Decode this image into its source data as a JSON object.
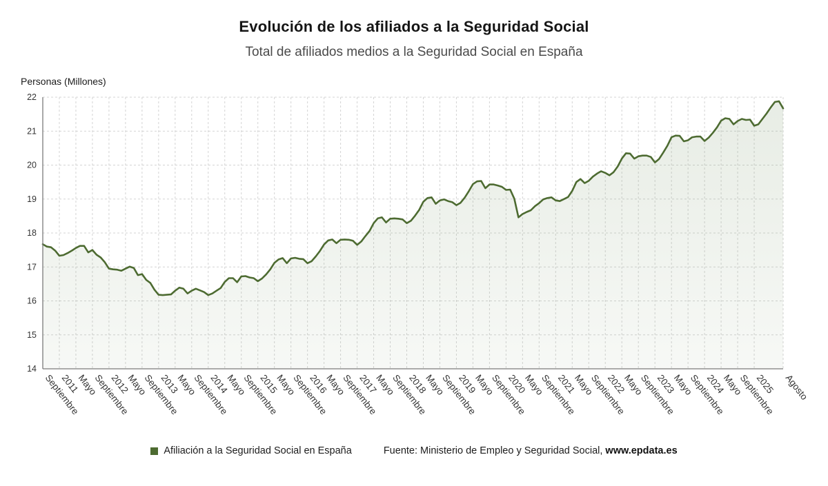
{
  "source": {
    "prefix": "Fuente: Ministerio de Empleo y Seguridad Social, ",
    "site": "www.epdata.es"
  },
  "colors": {
    "line": "#4d6b31",
    "area": "#8aa37c",
    "grid": "#d3d3d3",
    "axis": "#7a7a7a",
    "text": "#333333"
  },
  "chart_data": {
    "type": "area",
    "title": "Evolución de los afiliados a la Seguridad Social",
    "subtitle": "Total de afiliados medios a la Seguridad Social en España",
    "xlabel": "",
    "ylabel": "Personas (Millones)",
    "ylim": [
      14,
      22
    ],
    "y_ticks": [
      14,
      15,
      16,
      17,
      18,
      19,
      20,
      21,
      22
    ],
    "grid": "dashed",
    "legend_position": "bottom",
    "x_tick_labels": [
      {
        "i": 0,
        "label": "Septiembre"
      },
      {
        "i": 4,
        "label": "2011"
      },
      {
        "i": 8,
        "label": "Mayo"
      },
      {
        "i": 12,
        "label": "Septiembre"
      },
      {
        "i": 16,
        "label": "2012"
      },
      {
        "i": 20,
        "label": "Mayo"
      },
      {
        "i": 24,
        "label": "Septiembre"
      },
      {
        "i": 28,
        "label": "2013"
      },
      {
        "i": 32,
        "label": "Mayo"
      },
      {
        "i": 36,
        "label": "Septiembre"
      },
      {
        "i": 40,
        "label": "2014"
      },
      {
        "i": 44,
        "label": "Mayo"
      },
      {
        "i": 48,
        "label": "Septiembre"
      },
      {
        "i": 52,
        "label": "2015"
      },
      {
        "i": 56,
        "label": "Mayo"
      },
      {
        "i": 60,
        "label": "Septiembre"
      },
      {
        "i": 64,
        "label": "2016"
      },
      {
        "i": 68,
        "label": "Mayo"
      },
      {
        "i": 72,
        "label": "Septiembre"
      },
      {
        "i": 76,
        "label": "2017"
      },
      {
        "i": 80,
        "label": "Mayo"
      },
      {
        "i": 84,
        "label": "Septiembre"
      },
      {
        "i": 88,
        "label": "2018"
      },
      {
        "i": 92,
        "label": "Mayo"
      },
      {
        "i": 96,
        "label": "Septiembre"
      },
      {
        "i": 100,
        "label": "2019"
      },
      {
        "i": 104,
        "label": "Mayo"
      },
      {
        "i": 108,
        "label": "Septiembre"
      },
      {
        "i": 112,
        "label": "2020"
      },
      {
        "i": 116,
        "label": "Mayo"
      },
      {
        "i": 120,
        "label": "Septiembre"
      },
      {
        "i": 124,
        "label": "2021"
      },
      {
        "i": 128,
        "label": "Mayo"
      },
      {
        "i": 132,
        "label": "Septiembre"
      },
      {
        "i": 136,
        "label": "2022"
      },
      {
        "i": 140,
        "label": "Mayo"
      },
      {
        "i": 144,
        "label": "Septiembre"
      },
      {
        "i": 148,
        "label": "2023"
      },
      {
        "i": 152,
        "label": "Mayo"
      },
      {
        "i": 156,
        "label": "Septiembre"
      },
      {
        "i": 160,
        "label": "2024"
      },
      {
        "i": 164,
        "label": "Mayo"
      },
      {
        "i": 168,
        "label": "Septiembre"
      },
      {
        "i": 172,
        "label": "2025"
      },
      {
        "i": 179,
        "label": "Agosto"
      }
    ],
    "series": [
      {
        "name": "Afiliación a la Seguridad Social en España",
        "values": [
          17.67,
          17.6,
          17.58,
          17.48,
          17.33,
          17.35,
          17.41,
          17.48,
          17.56,
          17.62,
          17.62,
          17.43,
          17.5,
          17.36,
          17.28,
          17.14,
          16.95,
          16.93,
          16.92,
          16.89,
          16.95,
          17.01,
          16.97,
          16.76,
          16.79,
          16.62,
          16.53,
          16.33,
          16.18,
          16.17,
          16.18,
          16.19,
          16.3,
          16.39,
          16.36,
          16.22,
          16.3,
          16.36,
          16.31,
          16.26,
          16.17,
          16.22,
          16.3,
          16.38,
          16.56,
          16.67,
          16.67,
          16.55,
          16.72,
          16.73,
          16.69,
          16.67,
          16.58,
          16.66,
          16.78,
          16.93,
          17.12,
          17.22,
          17.26,
          17.11,
          17.25,
          17.27,
          17.24,
          17.23,
          17.11,
          17.17,
          17.31,
          17.47,
          17.66,
          17.78,
          17.81,
          17.7,
          17.8,
          17.81,
          17.8,
          17.77,
          17.65,
          17.75,
          17.91,
          18.06,
          18.29,
          18.43,
          18.46,
          18.31,
          18.42,
          18.43,
          18.42,
          18.4,
          18.29,
          18.36,
          18.51,
          18.68,
          18.92,
          19.03,
          19.05,
          18.86,
          18.96,
          18.99,
          18.94,
          18.91,
          18.82,
          18.89,
          19.04,
          19.23,
          19.44,
          19.52,
          19.53,
          19.32,
          19.43,
          19.43,
          19.4,
          19.36,
          19.27,
          19.28,
          19.01,
          18.46,
          18.56,
          18.62,
          18.67,
          18.79,
          18.88,
          18.99,
          19.03,
          19.05,
          18.96,
          18.94,
          19.0,
          19.06,
          19.24,
          19.5,
          19.59,
          19.47,
          19.54,
          19.66,
          19.75,
          19.82,
          19.77,
          19.7,
          19.79,
          19.96,
          20.19,
          20.35,
          20.34,
          20.19,
          20.26,
          20.28,
          20.28,
          20.24,
          20.08,
          20.18,
          20.37,
          20.57,
          20.82,
          20.87,
          20.86,
          20.7,
          20.73,
          20.82,
          20.84,
          20.84,
          20.71,
          20.81,
          20.95,
          21.11,
          21.31,
          21.38,
          21.36,
          21.2,
          21.3,
          21.36,
          21.33,
          21.34,
          21.16,
          21.2,
          21.36,
          21.52,
          21.7,
          21.86,
          21.88,
          21.67
        ]
      }
    ]
  }
}
